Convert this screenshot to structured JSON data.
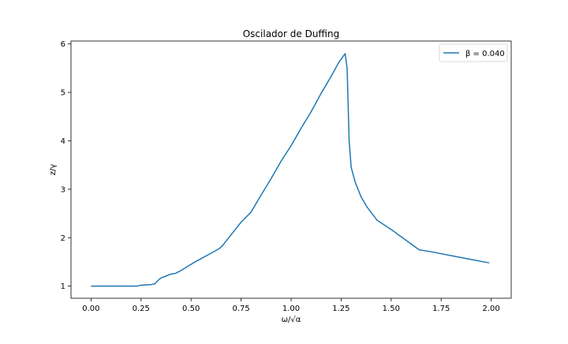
{
  "chart_data": {
    "type": "line",
    "title": "Oscilador de Duffing",
    "xlabel": "ω/√α",
    "ylabel": "z/γ",
    "xlim": [
      -0.1,
      2.1
    ],
    "ylim": [
      0.75,
      6.06
    ],
    "xticks": [
      "0.00",
      "0.25",
      "0.50",
      "0.75",
      "1.00",
      "1.25",
      "1.50",
      "1.75",
      "2.00"
    ],
    "xtick_values": [
      0,
      0.25,
      0.5,
      0.75,
      1.0,
      1.25,
      1.5,
      1.75,
      2.0
    ],
    "yticks": [
      "1",
      "2",
      "3",
      "4",
      "5",
      "6"
    ],
    "ytick_values": [
      1,
      2,
      3,
      4,
      5,
      6
    ],
    "grid": false,
    "legend_position": "top-right",
    "series": [
      {
        "name": "β = 0.040",
        "color": "#1f77b4",
        "x": [
          0.0,
          0.1,
          0.2,
          0.23,
          0.25,
          0.3,
          0.32,
          0.33,
          0.35,
          0.37,
          0.4,
          0.42,
          0.44,
          0.48,
          0.52,
          0.56,
          0.6,
          0.64,
          0.66,
          0.7,
          0.75,
          0.8,
          0.85,
          0.9,
          0.95,
          1.0,
          1.05,
          1.1,
          1.15,
          1.2,
          1.24,
          1.27,
          1.28,
          1.29,
          1.3,
          1.32,
          1.35,
          1.38,
          1.43,
          1.5,
          1.57,
          1.64,
          1.7,
          1.8,
          1.9,
          1.99
        ],
        "y": [
          1.0,
          1.0,
          1.0,
          1.0,
          1.02,
          1.03,
          1.05,
          1.1,
          1.17,
          1.2,
          1.25,
          1.26,
          1.3,
          1.4,
          1.5,
          1.59,
          1.68,
          1.77,
          1.85,
          2.06,
          2.32,
          2.53,
          2.88,
          3.22,
          3.58,
          3.9,
          4.26,
          4.6,
          4.98,
          5.33,
          5.63,
          5.8,
          5.5,
          4.0,
          3.46,
          3.15,
          2.84,
          2.63,
          2.36,
          2.17,
          1.96,
          1.75,
          1.71,
          1.63,
          1.55,
          1.48
        ]
      }
    ]
  }
}
